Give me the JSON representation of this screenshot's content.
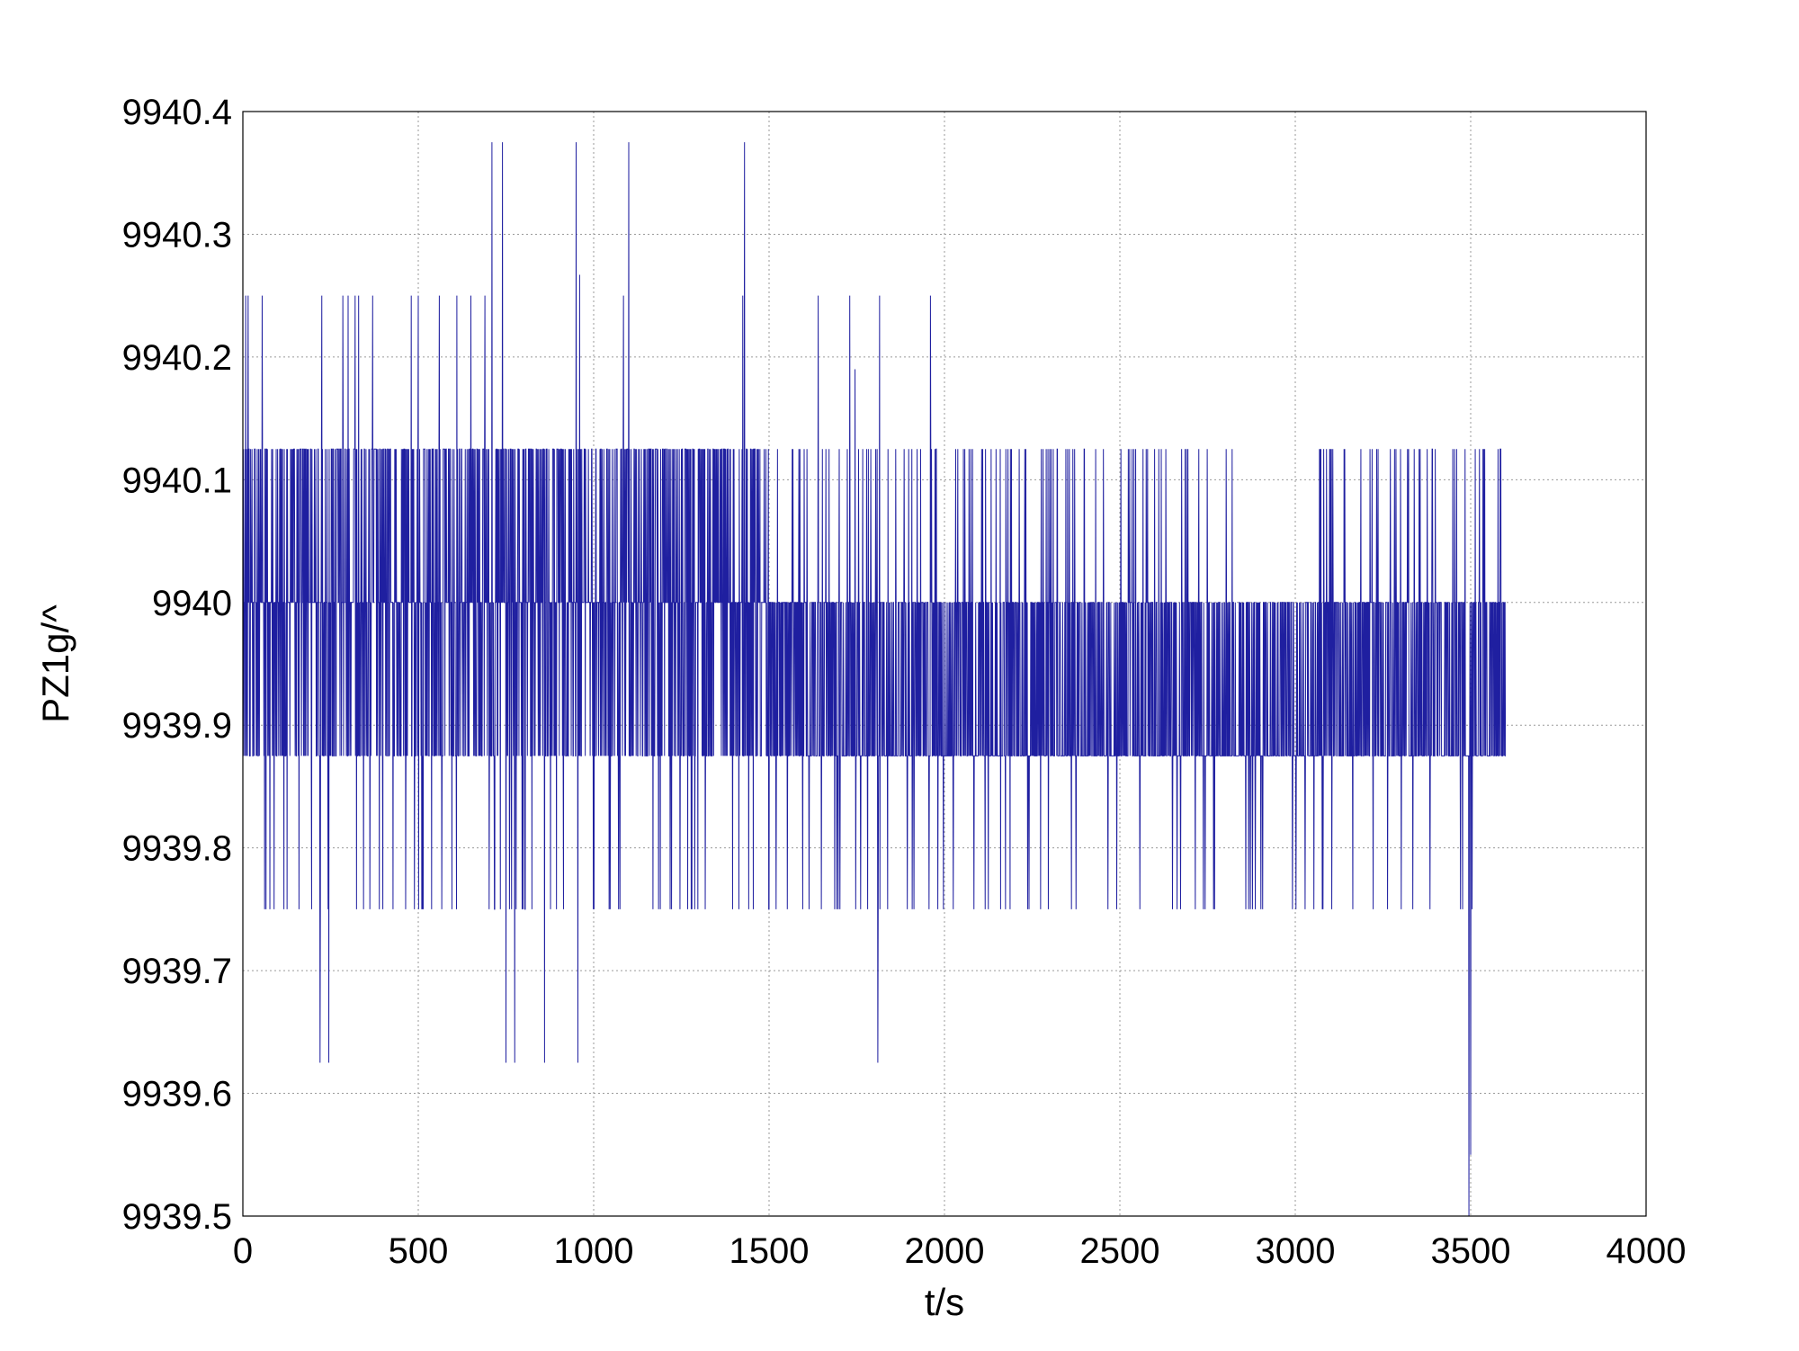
{
  "chart_data": {
    "type": "line",
    "title": "",
    "xlabel": "t/s",
    "ylabel": "PZ1g/^",
    "xlim": [
      0,
      4000
    ],
    "ylim": [
      9939.5,
      9940.4
    ],
    "xticks": [
      0,
      500,
      1000,
      1500,
      2000,
      2500,
      3000,
      3500,
      4000
    ],
    "xtick_labels": [
      "0",
      "500",
      "1000",
      "1500",
      "2000",
      "2500",
      "3000",
      "3500",
      "4000"
    ],
    "yticks": [
      9939.5,
      9939.6,
      9939.7,
      9939.8,
      9939.9,
      9940.0,
      9940.1,
      9940.2,
      9940.3,
      9940.4
    ],
    "ytick_labels": [
      "9939.5",
      "9939.6",
      "9939.7",
      "9939.8",
      "9939.9",
      "9940",
      "9940.1",
      "9940.2",
      "9940.3",
      "9940.4"
    ],
    "grid": true,
    "series_color": "#1f1fa0",
    "sample_interval_s": 1,
    "base_levels": [
      9939.875,
      9940.0,
      9940.125
    ],
    "spikes": [
      {
        "x": 8,
        "y": 9940.25
      },
      {
        "x": 15,
        "y": 9940.25
      },
      {
        "x": 55,
        "y": 9940.25
      },
      {
        "x": 220,
        "y": 9939.625
      },
      {
        "x": 245,
        "y": 9939.625
      },
      {
        "x": 225,
        "y": 9940.25
      },
      {
        "x": 285,
        "y": 9940.25
      },
      {
        "x": 300,
        "y": 9940.25
      },
      {
        "x": 320,
        "y": 9940.25
      },
      {
        "x": 330,
        "y": 9940.25
      },
      {
        "x": 370,
        "y": 9940.25
      },
      {
        "x": 480,
        "y": 9940.25
      },
      {
        "x": 500,
        "y": 9940.25
      },
      {
        "x": 560,
        "y": 9940.25
      },
      {
        "x": 610,
        "y": 9940.25
      },
      {
        "x": 650,
        "y": 9940.25
      },
      {
        "x": 690,
        "y": 9940.25
      },
      {
        "x": 710,
        "y": 9940.375
      },
      {
        "x": 740,
        "y": 9940.375
      },
      {
        "x": 750,
        "y": 9939.625
      },
      {
        "x": 775,
        "y": 9939.625
      },
      {
        "x": 860,
        "y": 9939.625
      },
      {
        "x": 955,
        "y": 9939.625
      },
      {
        "x": 950,
        "y": 9940.375
      },
      {
        "x": 960,
        "y": 9940.267
      },
      {
        "x": 1100,
        "y": 9940.375
      },
      {
        "x": 1085,
        "y": 9940.25
      },
      {
        "x": 1430,
        "y": 9940.375
      },
      {
        "x": 1425,
        "y": 9940.25
      },
      {
        "x": 1640,
        "y": 9940.25
      },
      {
        "x": 1730,
        "y": 9940.25
      },
      {
        "x": 1810,
        "y": 9939.625
      },
      {
        "x": 1815,
        "y": 9940.25
      },
      {
        "x": 1745,
        "y": 9940.19
      },
      {
        "x": 1960,
        "y": 9940.25
      },
      {
        "x": 3495,
        "y": 9939.5
      },
      {
        "x": 3500,
        "y": 9939.55
      }
    ],
    "duration_s": 3600
  }
}
